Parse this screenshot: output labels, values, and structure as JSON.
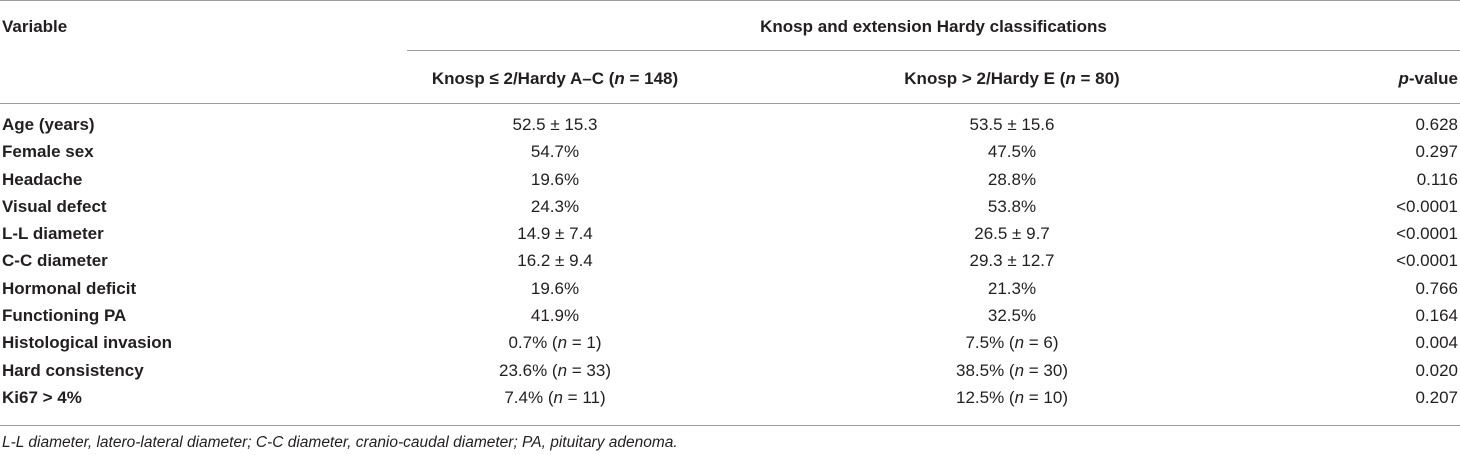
{
  "table": {
    "header": {
      "variable": "Variable",
      "group": "Knosp and extension Hardy classifications",
      "col1_pre": "Knosp ≤ 2/Hardy A–C (",
      "col1_n": "n",
      "col1_post": " = 148)",
      "col2_pre": "Knosp > 2/Hardy E (",
      "col2_n": "n",
      "col2_post": " = 80)",
      "col3_p": "p",
      "col3_post": "-value"
    },
    "rows": [
      {
        "variable": "Age (years)",
        "v1": "52.5 ± 15.3",
        "v2": "53.5 ± 15.6",
        "p": "0.628"
      },
      {
        "variable": "Female sex",
        "v1": "54.7%",
        "v2": "47.5%",
        "p": "0.297"
      },
      {
        "variable": "Headache",
        "v1": "19.6%",
        "v2": "28.8%",
        "p": "0.116"
      },
      {
        "variable": "Visual defect",
        "v1": "24.3%",
        "v2": "53.8%",
        "p": "<0.0001"
      },
      {
        "variable": "L-L diameter",
        "v1": "14.9 ± 7.4",
        "v2": "26.5 ± 9.7",
        "p": "<0.0001"
      },
      {
        "variable": "C-C diameter",
        "v1": "16.2 ± 9.4",
        "v2": "29.3 ± 12.7",
        "p": "<0.0001"
      },
      {
        "variable": "Hormonal deficit",
        "v1": "19.6%",
        "v2": "21.3%",
        "p": "0.766"
      },
      {
        "variable": "Functioning PA",
        "v1": "41.9%",
        "v2": "32.5%",
        "p": "0.164"
      },
      {
        "variable": "Histological invasion",
        "v1": "0.7% (",
        "v1_n": "n",
        "v1_post": " = 1)",
        "v2": "7.5% (",
        "v2_n": "n",
        "v2_post": " = 6)",
        "p": "0.004"
      },
      {
        "variable": "Hard consistency",
        "v1": "23.6% (",
        "v1_n": "n",
        "v1_post": " = 33)",
        "v2": "38.5% (",
        "v2_n": "n",
        "v2_post": " = 30)",
        "p": "0.020"
      },
      {
        "variable": "Ki67 > 4%",
        "v1": "7.4% (",
        "v1_n": "n",
        "v1_post": " = 11)",
        "v2": "12.5% (",
        "v2_n": "n",
        "v2_post": " = 10)",
        "p": "0.207"
      }
    ],
    "footnote": "L-L diameter, latero-lateral diameter; C-C diameter, cranio-caudal diameter; PA, pituitary adenoma."
  }
}
